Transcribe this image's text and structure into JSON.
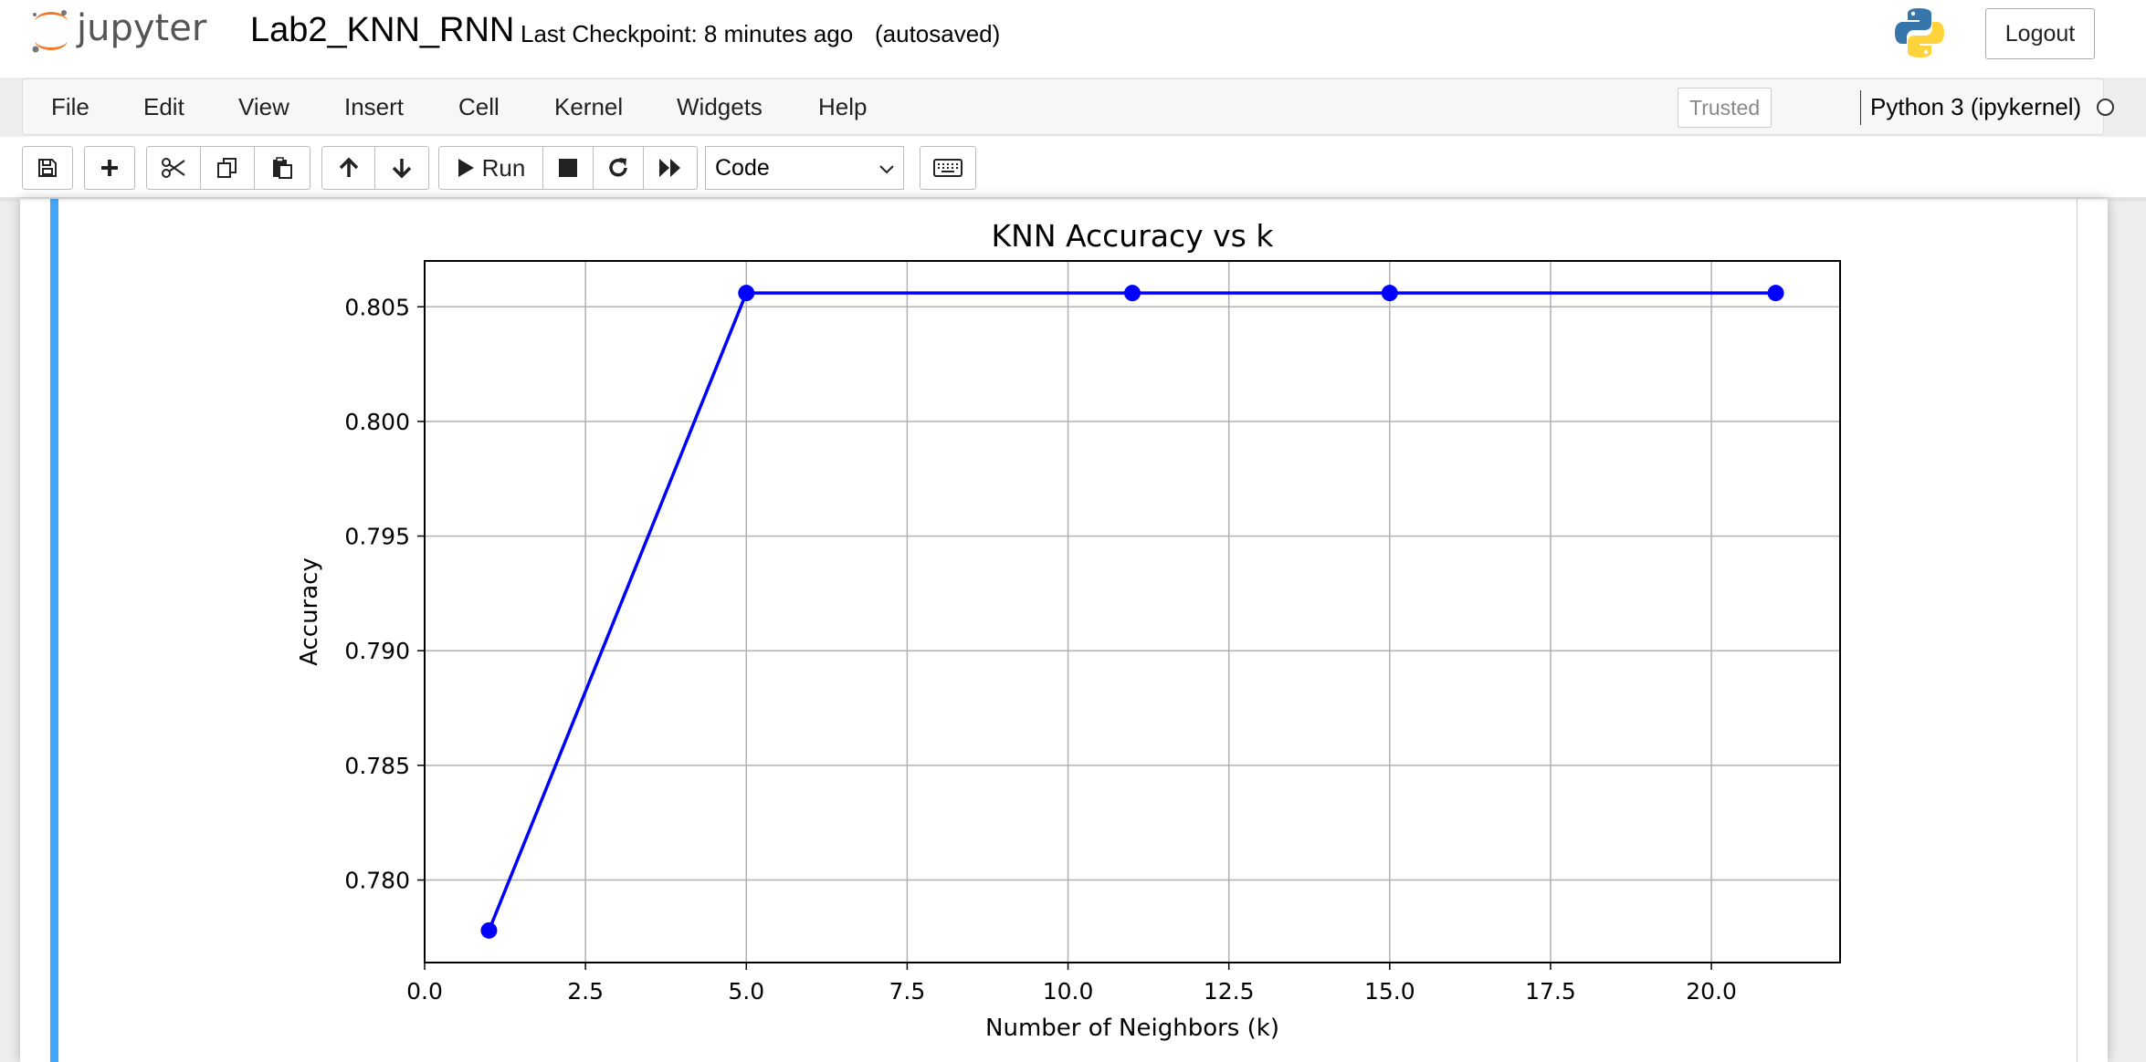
{
  "header": {
    "logo_text": "jupyter",
    "notebook_name": "Lab2_KNN_RNN",
    "checkpoint": "Last Checkpoint: 8 minutes ago",
    "autosave": "(autosaved)",
    "logout_label": "Logout"
  },
  "menubar": {
    "items": [
      "File",
      "Edit",
      "View",
      "Insert",
      "Cell",
      "Kernel",
      "Widgets",
      "Help"
    ],
    "trusted_label": "Trusted",
    "kernel_name": "Python 3 (ipykernel)"
  },
  "toolbar": {
    "run_label": "Run",
    "cell_type": "Code",
    "icons": [
      "save-icon",
      "plus-icon",
      "cut-icon",
      "copy-icon",
      "paste-icon",
      "arrow-up-icon",
      "arrow-down-icon",
      "play-icon",
      "stop-icon",
      "restart-icon",
      "fast-forward-icon",
      "keyboard-icon"
    ]
  },
  "colors": {
    "accent": "#42a5f5",
    "series": "#0000ff",
    "logo_orange": "#f37726"
  },
  "chart_data": {
    "type": "line",
    "title": "KNN Accuracy vs k",
    "xlabel": "Number of Neighbors (k)",
    "ylabel": "Accuracy",
    "x": [
      1,
      5,
      11,
      15,
      21
    ],
    "series": [
      {
        "values": [
          0.7778,
          0.8056,
          0.8056,
          0.8056,
          0.8056
        ]
      }
    ],
    "xlim": [
      0,
      22
    ],
    "ylim": [
      0.7764,
      0.807
    ],
    "xticks": [
      0.0,
      2.5,
      5.0,
      7.5,
      10.0,
      12.5,
      15.0,
      17.5,
      20.0
    ],
    "xtick_labels": [
      "0.0",
      "2.5",
      "5.0",
      "7.5",
      "10.0",
      "12.5",
      "15.0",
      "17.5",
      "20.0"
    ],
    "yticks": [
      0.78,
      0.785,
      0.79,
      0.795,
      0.8,
      0.805
    ],
    "ytick_labels": [
      "0.780",
      "0.785",
      "0.790",
      "0.795",
      "0.800",
      "0.805"
    ],
    "grid": true,
    "marker": "circle"
  }
}
